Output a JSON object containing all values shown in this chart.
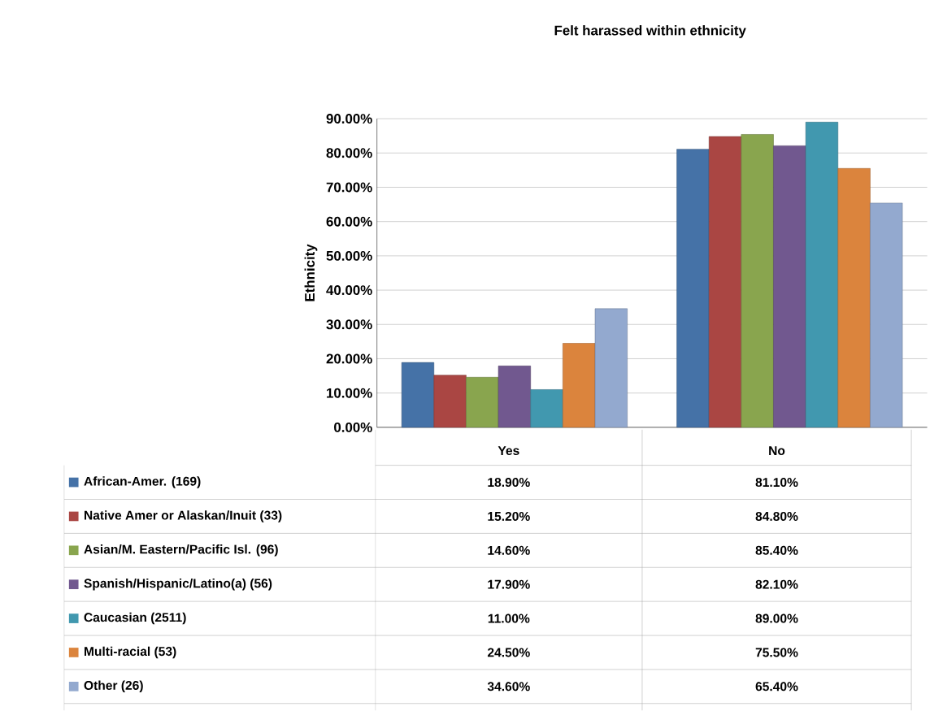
{
  "chart_data": {
    "type": "bar",
    "title": "Felt harassed within ethnicity",
    "ylabel": "Ethnicity",
    "categories": [
      "Yes",
      "No"
    ],
    "series": [
      {
        "name": "African-Amer. (169)",
        "color": "#4572a7",
        "values": [
          18.9,
          81.1
        ],
        "value_labels": [
          "18.90%",
          "81.10%"
        ]
      },
      {
        "name": "Native Amer or Alaskan/Inuit (33)",
        "color": "#aa4643",
        "values": [
          15.2,
          84.8
        ],
        "value_labels": [
          "15.20%",
          "84.80%"
        ]
      },
      {
        "name": "Asian/M. Eastern/Pacific Isl. (96)",
        "color": "#89a54e",
        "values": [
          14.6,
          85.4
        ],
        "value_labels": [
          "14.60%",
          "85.40%"
        ]
      },
      {
        "name": "Spanish/Hispanic/Latino(a) (56)",
        "color": "#71588f",
        "values": [
          17.9,
          82.1
        ],
        "value_labels": [
          "17.90%",
          "82.10%"
        ]
      },
      {
        "name": "Caucasian (2511)",
        "color": "#4198af",
        "values": [
          11.0,
          89.0
        ],
        "value_labels": [
          "11.00%",
          "89.00%"
        ]
      },
      {
        "name": "Multi-racial (53)",
        "color": "#db843d",
        "values": [
          24.5,
          75.5
        ],
        "value_labels": [
          "24.50%",
          "75.50%"
        ]
      },
      {
        "name": "Other (26)",
        "color": "#93a9cf",
        "values": [
          34.6,
          65.4
        ],
        "value_labels": [
          "34.60%",
          "65.40%"
        ]
      }
    ],
    "ylim": [
      0,
      90
    ],
    "yticks": [
      {
        "value": 0,
        "label": "0.00%"
      },
      {
        "value": 10,
        "label": "10.00%"
      },
      {
        "value": 20,
        "label": "20.00%"
      },
      {
        "value": 30,
        "label": "30.00%"
      },
      {
        "value": 40,
        "label": "40.00%"
      },
      {
        "value": 50,
        "label": "50.00%"
      },
      {
        "value": 60,
        "label": "60.00%"
      },
      {
        "value": 70,
        "label": "70.00%"
      },
      {
        "value": 80,
        "label": "80.00%"
      },
      {
        "value": 90,
        "label": "90.00%"
      }
    ],
    "grid": "y",
    "legend": "bottom"
  }
}
